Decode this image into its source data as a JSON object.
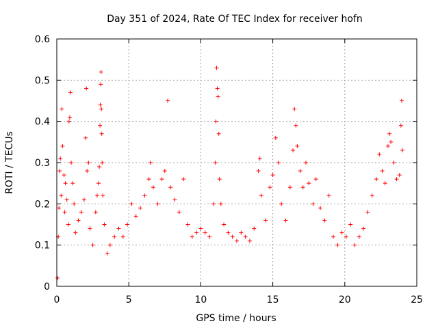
{
  "chart_data": {
    "type": "scatter",
    "title": "Day 351 of 2024, Rate Of TEC Index for receiver hofn",
    "xlabel": "GPS time / hours",
    "ylabel": "ROTI / TECUs",
    "xlim": [
      0,
      25
    ],
    "ylim": [
      0,
      0.6
    ],
    "xticks": [
      "0",
      "5",
      "10",
      "15",
      "20",
      "25"
    ],
    "yticks": [
      "0",
      "0.1",
      "0.2",
      "0.3",
      "0.4",
      "0.5",
      "0.6"
    ],
    "grid": true,
    "marker": "+",
    "series_color": "#ff0000",
    "series": [
      {
        "points": [
          [
            0.05,
            0.02
          ],
          [
            0.1,
            0.12
          ],
          [
            0.15,
            0.19
          ],
          [
            0.2,
            0.28
          ],
          [
            0.25,
            0.31
          ],
          [
            0.3,
            0.22
          ],
          [
            0.35,
            0.43
          ],
          [
            0.4,
            0.34
          ],
          [
            0.5,
            0.27
          ],
          [
            0.55,
            0.18
          ],
          [
            0.6,
            0.25
          ],
          [
            0.7,
            0.21
          ],
          [
            0.8,
            0.15
          ],
          [
            0.85,
            0.4
          ],
          [
            0.9,
            0.41
          ],
          [
            0.95,
            0.47
          ],
          [
            1.0,
            0.3
          ],
          [
            1.1,
            0.25
          ],
          [
            1.2,
            0.2
          ],
          [
            1.3,
            0.13
          ],
          [
            1.5,
            0.16
          ],
          [
            1.7,
            0.18
          ],
          [
            1.9,
            0.21
          ],
          [
            2.0,
            0.36
          ],
          [
            2.05,
            0.48
          ],
          [
            2.1,
            0.28
          ],
          [
            2.2,
            0.3
          ],
          [
            2.3,
            0.14
          ],
          [
            2.5,
            0.1
          ],
          [
            2.7,
            0.18
          ],
          [
            2.8,
            0.22
          ],
          [
            2.9,
            0.25
          ],
          [
            2.95,
            0.29
          ],
          [
            3.0,
            0.39
          ],
          [
            3.02,
            0.44
          ],
          [
            3.05,
            0.49
          ],
          [
            3.08,
            0.52
          ],
          [
            3.1,
            0.43
          ],
          [
            3.12,
            0.37
          ],
          [
            3.15,
            0.3
          ],
          [
            3.2,
            0.22
          ],
          [
            3.3,
            0.15
          ],
          [
            3.5,
            0.08
          ],
          [
            3.7,
            0.1
          ],
          [
            4.0,
            0.12
          ],
          [
            4.3,
            0.14
          ],
          [
            4.6,
            0.12
          ],
          [
            4.9,
            0.15
          ],
          [
            5.2,
            0.2
          ],
          [
            5.5,
            0.17
          ],
          [
            5.8,
            0.19
          ],
          [
            6.1,
            0.22
          ],
          [
            6.4,
            0.26
          ],
          [
            6.5,
            0.3
          ],
          [
            6.7,
            0.24
          ],
          [
            7.0,
            0.2
          ],
          [
            7.3,
            0.26
          ],
          [
            7.5,
            0.28
          ],
          [
            7.7,
            0.45
          ],
          [
            7.9,
            0.24
          ],
          [
            8.2,
            0.21
          ],
          [
            8.5,
            0.18
          ],
          [
            8.8,
            0.26
          ],
          [
            9.1,
            0.15
          ],
          [
            9.4,
            0.12
          ],
          [
            9.7,
            0.13
          ],
          [
            10.0,
            0.14
          ],
          [
            10.3,
            0.13
          ],
          [
            10.6,
            0.12
          ],
          [
            10.9,
            0.2
          ],
          [
            11.0,
            0.3
          ],
          [
            11.05,
            0.4
          ],
          [
            11.1,
            0.53
          ],
          [
            11.15,
            0.48
          ],
          [
            11.2,
            0.46
          ],
          [
            11.25,
            0.37
          ],
          [
            11.3,
            0.26
          ],
          [
            11.4,
            0.2
          ],
          [
            11.6,
            0.15
          ],
          [
            11.9,
            0.13
          ],
          [
            12.2,
            0.12
          ],
          [
            12.5,
            0.11
          ],
          [
            12.8,
            0.13
          ],
          [
            13.1,
            0.12
          ],
          [
            13.4,
            0.11
          ],
          [
            13.7,
            0.14
          ],
          [
            14.0,
            0.28
          ],
          [
            14.1,
            0.31
          ],
          [
            14.2,
            0.22
          ],
          [
            14.5,
            0.16
          ],
          [
            14.8,
            0.24
          ],
          [
            15.0,
            0.27
          ],
          [
            15.2,
            0.36
          ],
          [
            15.4,
            0.3
          ],
          [
            15.6,
            0.2
          ],
          [
            15.9,
            0.16
          ],
          [
            16.2,
            0.24
          ],
          [
            16.4,
            0.33
          ],
          [
            16.5,
            0.43
          ],
          [
            16.6,
            0.39
          ],
          [
            16.7,
            0.34
          ],
          [
            16.9,
            0.28
          ],
          [
            17.1,
            0.24
          ],
          [
            17.3,
            0.3
          ],
          [
            17.5,
            0.25
          ],
          [
            17.8,
            0.2
          ],
          [
            18.0,
            0.26
          ],
          [
            18.3,
            0.19
          ],
          [
            18.6,
            0.16
          ],
          [
            18.9,
            0.22
          ],
          [
            19.2,
            0.12
          ],
          [
            19.5,
            0.1
          ],
          [
            19.8,
            0.13
          ],
          [
            20.1,
            0.12
          ],
          [
            20.4,
            0.15
          ],
          [
            20.7,
            0.1
          ],
          [
            21.0,
            0.12
          ],
          [
            21.3,
            0.14
          ],
          [
            21.6,
            0.18
          ],
          [
            21.9,
            0.22
          ],
          [
            22.2,
            0.26
          ],
          [
            22.4,
            0.32
          ],
          [
            22.6,
            0.28
          ],
          [
            22.8,
            0.25
          ],
          [
            23.0,
            0.34
          ],
          [
            23.1,
            0.37
          ],
          [
            23.2,
            0.35
          ],
          [
            23.4,
            0.3
          ],
          [
            23.6,
            0.26
          ],
          [
            23.8,
            0.27
          ],
          [
            23.9,
            0.39
          ],
          [
            23.95,
            0.45
          ],
          [
            24.0,
            0.33
          ]
        ]
      }
    ]
  }
}
